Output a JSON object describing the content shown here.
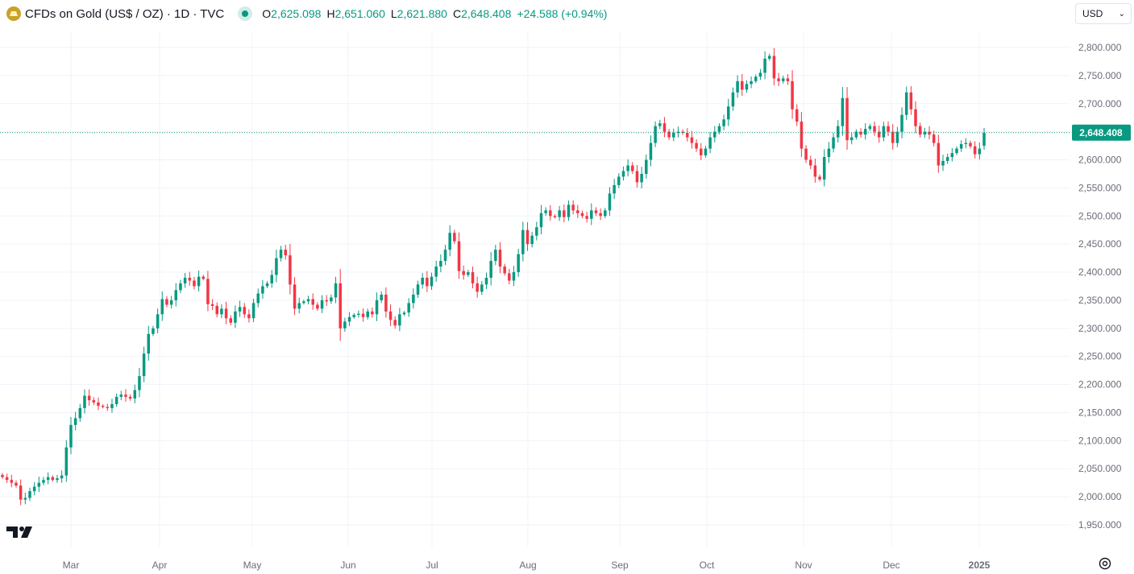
{
  "header": {
    "title": "CFDs on Gold (US$ / OZ) · 1D · TVC",
    "open_label": "O",
    "open": "2,625.098",
    "high_label": "H",
    "high": "2,651.060",
    "low_label": "L",
    "low": "2,621.880",
    "close_label": "C",
    "close": "2,648.408",
    "change": "+24.588 (+0.94%)"
  },
  "currency": {
    "selected": "USD"
  },
  "colors": {
    "up": "#089981",
    "down": "#f23645",
    "grid": "#f0f3fa",
    "axis_text": "#6a6d78"
  },
  "icons": {
    "logo": "gold-symbol-icon",
    "status": "market-status-dot-icon",
    "settings": "gear-icon",
    "brand": "tradingview-logo-icon"
  },
  "chart_data": {
    "type": "candlestick",
    "symbol": "TVC:GOLD",
    "interval": "1D",
    "ylim": [
      1925,
      2815
    ],
    "y_ticks": [
      1950,
      2000,
      2050,
      2100,
      2150,
      2200,
      2250,
      2300,
      2350,
      2400,
      2450,
      2500,
      2550,
      2600,
      2650,
      2700,
      2750,
      2800
    ],
    "y_tick_labels": [
      "1,950.000",
      "2,000.000",
      "2,050.000",
      "2,100.000",
      "2,150.000",
      "2,200.000",
      "2,250.000",
      "2,300.000",
      "2,350.000",
      "2,400.000",
      "2,450.000",
      "2,500.000",
      "2,550.000",
      "2,600.000",
      "2,650.000",
      "2,700.000",
      "2,750.000",
      "2,800.000"
    ],
    "x_tick_labels": [
      "Mar",
      "Apr",
      "May",
      "Jun",
      "Jul",
      "Aug",
      "Sep",
      "Oct",
      "Nov",
      "Dec",
      "2025"
    ],
    "last_price": 2648.408,
    "last_price_label": "2,648.408",
    "closes": [
      2035,
      2030,
      2025,
      2020,
      1995,
      1998,
      2010,
      2018,
      2025,
      2030,
      2035,
      2030,
      2033,
      2038,
      2088,
      2128,
      2140,
      2158,
      2180,
      2172,
      2168,
      2162,
      2160,
      2158,
      2165,
      2178,
      2182,
      2178,
      2175,
      2190,
      2215,
      2255,
      2290,
      2300,
      2325,
      2352,
      2342,
      2350,
      2368,
      2380,
      2390,
      2385,
      2375,
      2392,
      2388,
      2343,
      2340,
      2325,
      2335,
      2318,
      2310,
      2330,
      2338,
      2325,
      2318,
      2345,
      2362,
      2375,
      2380,
      2395,
      2425,
      2440,
      2430,
      2378,
      2335,
      2345,
      2348,
      2352,
      2342,
      2335,
      2350,
      2348,
      2355,
      2380,
      2300,
      2312,
      2320,
      2324,
      2326,
      2320,
      2330,
      2325,
      2350,
      2360,
      2330,
      2315,
      2305,
      2325,
      2328,
      2345,
      2360,
      2378,
      2390,
      2375,
      2392,
      2410,
      2420,
      2440,
      2470,
      2455,
      2402,
      2395,
      2400,
      2380,
      2365,
      2378,
      2390,
      2420,
      2440,
      2410,
      2398,
      2385,
      2400,
      2432,
      2475,
      2450,
      2465,
      2480,
      2505,
      2510,
      2500,
      2498,
      2510,
      2498,
      2520,
      2510,
      2505,
      2500,
      2495,
      2510,
      2505,
      2500,
      2510,
      2540,
      2555,
      2570,
      2580,
      2590,
      2580,
      2560,
      2575,
      2600,
      2630,
      2660,
      2665,
      2650,
      2640,
      2648,
      2650,
      2648,
      2640,
      2630,
      2620,
      2608,
      2620,
      2640,
      2650,
      2660,
      2672,
      2695,
      2720,
      2740,
      2725,
      2735,
      2740,
      2748,
      2755,
      2780,
      2785,
      2745,
      2740,
      2745,
      2740,
      2690,
      2668,
      2620,
      2600,
      2590,
      2570,
      2565,
      2605,
      2620,
      2640,
      2660,
      2710,
      2635,
      2640,
      2650,
      2645,
      2655,
      2660,
      2650,
      2640,
      2660,
      2650,
      2630,
      2650,
      2680,
      2720,
      2690,
      2660,
      2645,
      2650,
      2645,
      2630,
      2590,
      2598,
      2605,
      2612,
      2620,
      2628,
      2630,
      2624,
      2610,
      2620,
      2648
    ]
  }
}
